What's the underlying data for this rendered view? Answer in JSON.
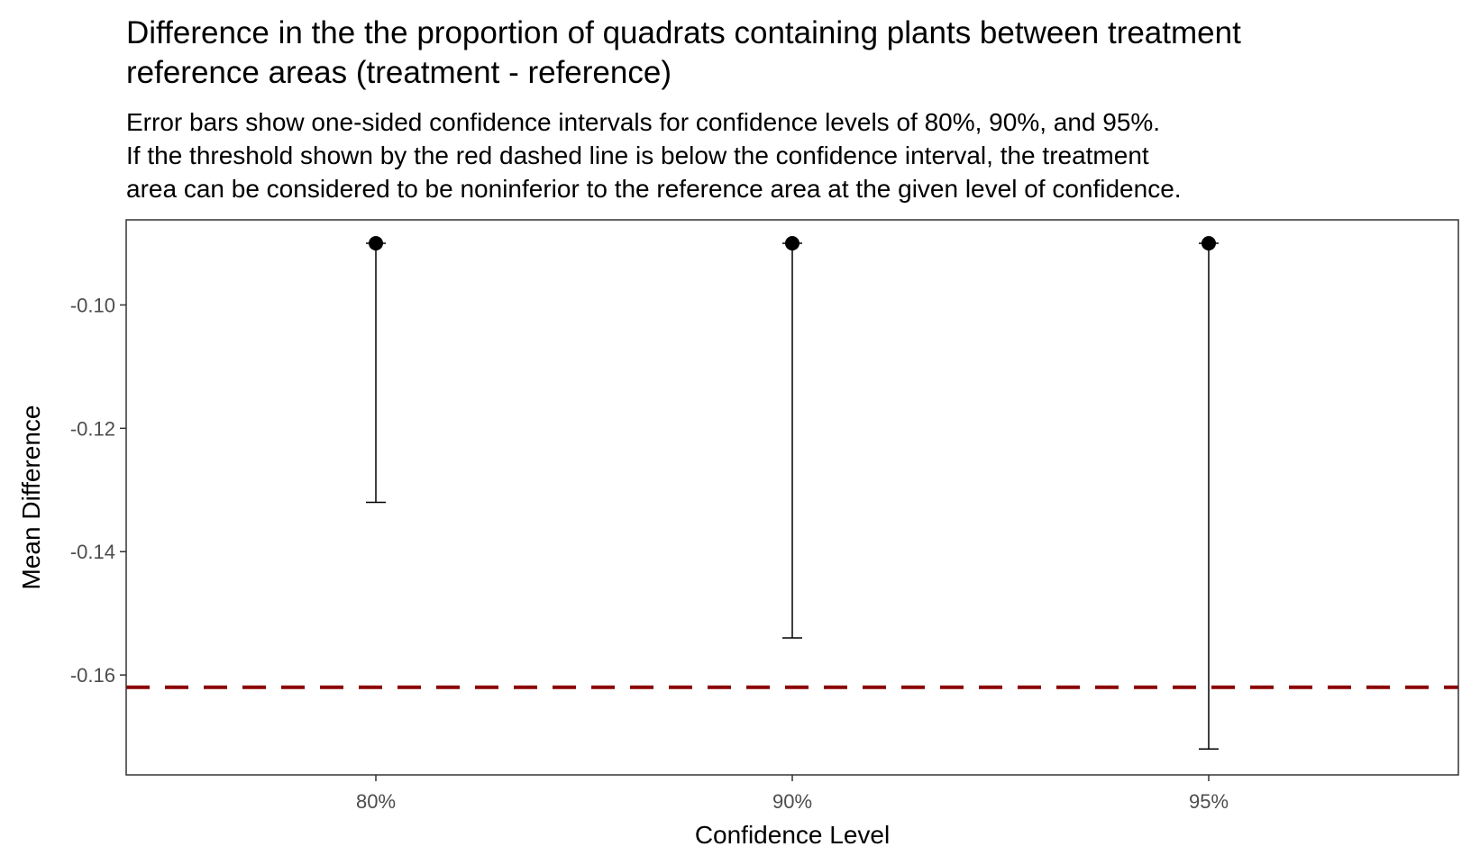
{
  "chart_data": {
    "type": "scatter",
    "title_lines": [
      "Difference in the the proportion of quadrats containing plants between treatment",
      "reference areas (treatment - reference)"
    ],
    "subtitle_lines": [
      "Error bars show one-sided confidence intervals for confidence levels of 80%, 90%, and 95%.",
      "If the threshold shown by the red dashed line is below the confidence interval, the treatment",
      "area can be considered to be noninferior to the reference area at the given level of confidence."
    ],
    "xlabel": "Confidence Level",
    "ylabel": "Mean Difference",
    "categories": [
      "80%",
      "90%",
      "95%"
    ],
    "mean": [
      -0.09,
      -0.09,
      -0.09
    ],
    "lower": [
      -0.132,
      -0.154,
      -0.172
    ],
    "y_ticks": [
      -0.1,
      -0.12,
      -0.14,
      -0.16
    ],
    "y_tick_labels": [
      "-0.10",
      "-0.12",
      "-0.14",
      "-0.16"
    ],
    "ylim": [
      -0.1762,
      -0.0862
    ],
    "threshold": -0.162,
    "threshold_style": "dashed",
    "grid": false,
    "colors": {
      "points": "#000000",
      "error_bars": "#000000",
      "threshold": "#8b0000",
      "panel_border": "#333333",
      "tick_labels": "#4d4d4d"
    }
  }
}
